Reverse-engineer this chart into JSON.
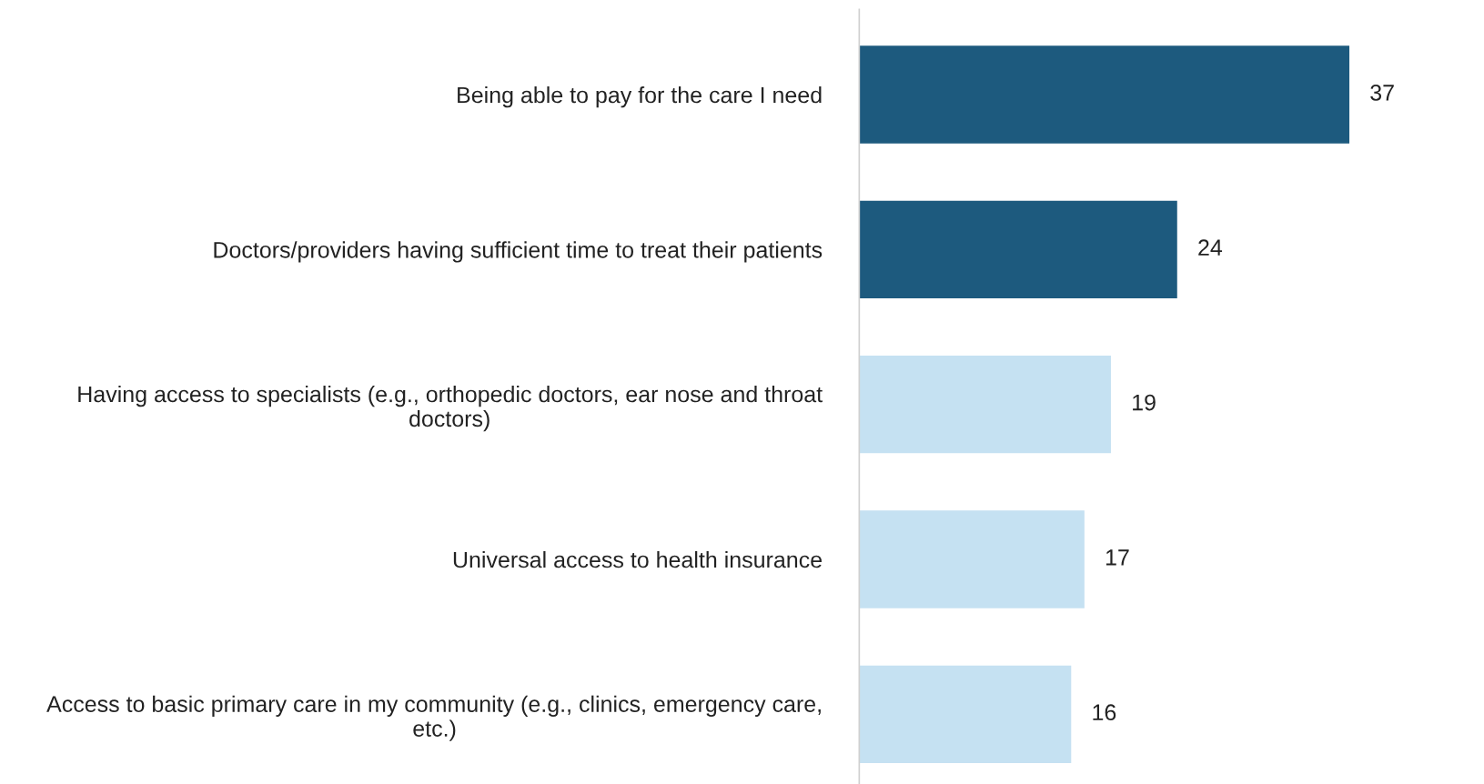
{
  "chart_data": {
    "type": "bar",
    "orientation": "horizontal",
    "categories": [
      "Being able to pay for the care I need",
      "Doctors/providers having sufficient time to treat their patients",
      "Having access to specialists (e.g., orthopedic doctors, ear nose and throat doctors)",
      "Universal access to health insurance",
      "Access to basic primary care in my community (e.g., clinics, emergency care, etc.)"
    ],
    "values": [
      37,
      24,
      19,
      17,
      16
    ],
    "colors": [
      "#1d5a7e",
      "#1d5a7e",
      "#c5e1f2",
      "#c5e1f2",
      "#c5e1f2"
    ],
    "data_labels": true,
    "grid": false,
    "legend": false,
    "tick_labels": "y"
  }
}
